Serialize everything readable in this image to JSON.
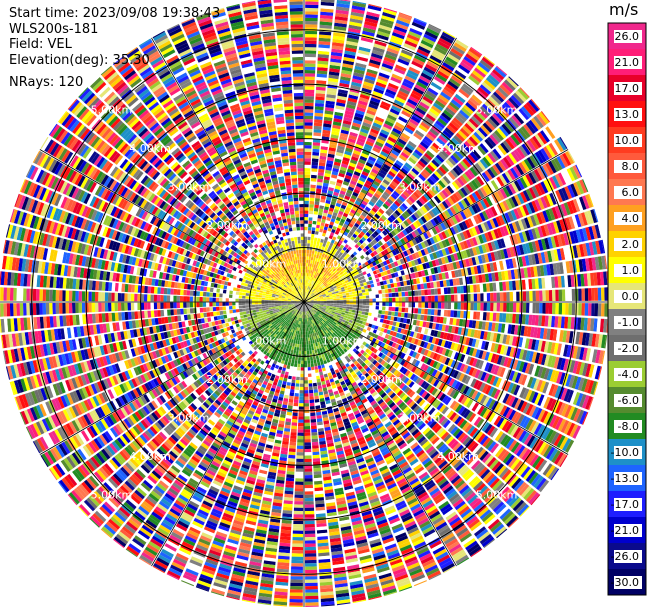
{
  "header": {
    "start_time": "Start time: 2023/09/08 19:38:43",
    "station": "WLS200s-181",
    "field": "Field: VEL",
    "elevation": "Elevation(deg): 35.30",
    "nrays": "NRays: 120"
  },
  "colorbar": {
    "unit": "m/s",
    "ticks": [
      "26.0",
      "21.0",
      "17.0",
      "13.0",
      "10.0",
      "8.0",
      "6.0",
      "4.0",
      "2.0",
      "1.0",
      "0.0",
      "-1.0",
      "-2.0",
      "-4.0",
      "-6.0",
      "-8.0",
      "-10.0",
      "-13.0",
      "-17.0",
      "-21.0",
      "-26.0",
      "-30.0"
    ],
    "colors": [
      "#f0288c",
      "#ff1e78",
      "#e8002a",
      "#ff1010",
      "#ff3c20",
      "#ff5a3c",
      "#ff7850",
      "#ffa020",
      "#ffd200",
      "#ffff00",
      "#e6e678",
      "#808080",
      "#6e6e6e",
      "#9bcd32",
      "#558b2f",
      "#228b22",
      "#1e90c8",
      "#1e64ff",
      "#1e1eff",
      "#0000cd",
      "#0a0a8c",
      "#000064"
    ]
  },
  "chart_data": {
    "type": "heatmap",
    "description_type": "polar PPI radar scan",
    "nrays": 120,
    "range_rings_km": [
      1.0,
      2.0,
      3.0,
      4.0,
      5.0
    ],
    "ring_labels": [
      "1.00km",
      "2.00km",
      "3.00km",
      "4.00km",
      "5.00km"
    ],
    "max_range_km": 5.6,
    "value_range": [
      -30,
      30
    ],
    "unit": "m/s"
  }
}
